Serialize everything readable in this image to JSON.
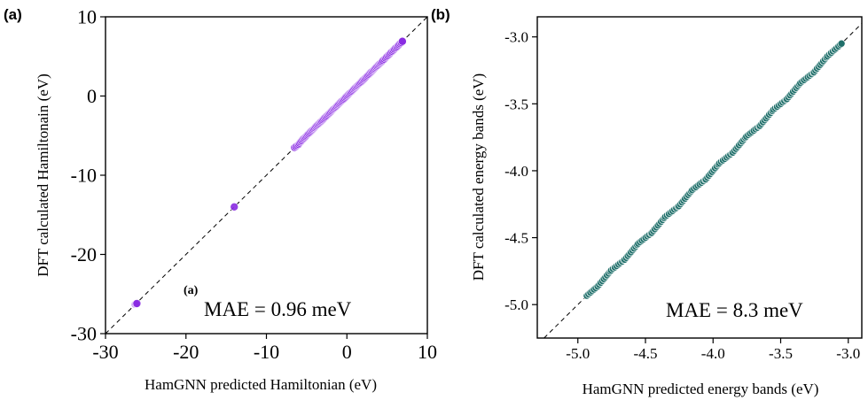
{
  "chart_data": [
    {
      "type": "scatter",
      "panel_label": "(a)",
      "inner_label": "(a)",
      "xlabel": "HamGNN predicted Hamiltonian (eV)",
      "ylabel": "DFT calculated Hamiltonain (eV)",
      "xlim": [
        -30,
        10
      ],
      "ylim": [
        -30,
        10
      ],
      "xticks": [
        -30,
        -20,
        -10,
        0,
        10
      ],
      "yticks": [
        -30,
        -20,
        -10,
        0,
        10
      ],
      "xtick_labels": [
        "-30",
        "-20",
        "-10",
        "0",
        "10"
      ],
      "ytick_labels": [
        "-30",
        "-20",
        "-10",
        "0",
        "10"
      ],
      "annotation": "MAE = 0.96 meV",
      "point_color": "#8a2be2",
      "grid": false,
      "reference_line": "y = x (dashed)",
      "points": [
        [
          -26.3,
          -26.3
        ],
        [
          -26.1,
          -26.2
        ],
        [
          -14.0,
          -14.0
        ],
        [
          -6.5,
          -6.5
        ],
        [
          -6.0,
          -6.1
        ],
        [
          -5.5,
          -5.5
        ],
        [
          -5.0,
          -5.0
        ],
        [
          -4.5,
          -4.5
        ],
        [
          -4.0,
          -4.0
        ],
        [
          -3.5,
          -3.5
        ],
        [
          -3.0,
          -3.0
        ],
        [
          -2.5,
          -2.5
        ],
        [
          -2.0,
          -2.0
        ],
        [
          -1.5,
          -1.5
        ],
        [
          -1.0,
          -1.0
        ],
        [
          -0.5,
          -0.5
        ],
        [
          0.0,
          0.0
        ],
        [
          0.5,
          0.5
        ],
        [
          1.0,
          1.0
        ],
        [
          1.5,
          1.5
        ],
        [
          2.0,
          2.0
        ],
        [
          2.5,
          2.5
        ],
        [
          3.0,
          3.0
        ],
        [
          3.5,
          3.5
        ],
        [
          4.0,
          4.0
        ],
        [
          4.5,
          4.5
        ],
        [
          4.8,
          4.8
        ],
        [
          6.9,
          6.9
        ]
      ]
    },
    {
      "type": "scatter",
      "panel_label": "(b)",
      "xlabel": "HamGNN predicted energy bands (eV)",
      "ylabel": "DFT calculated energy bands (eV)",
      "xlim": [
        -5.3,
        -2.9
      ],
      "ylim": [
        -5.25,
        -2.85
      ],
      "xticks": [
        -5.0,
        -4.5,
        -4.0,
        -3.5,
        -3.0
      ],
      "yticks": [
        -5.0,
        -4.5,
        -4.0,
        -3.5,
        -3.0
      ],
      "xtick_labels": [
        "-5.0",
        "-4.5",
        "-4.0",
        "-3.5",
        "-3.0"
      ],
      "ytick_labels": [
        "-5.0",
        "-4.5",
        "-4.0",
        "-3.5",
        "-3.0"
      ],
      "annotation": "MAE = 8.3 meV",
      "point_color": "#1f6f6a",
      "grid": false,
      "reference_line": "y = x (dashed)",
      "points": [
        [
          -4.93,
          -4.93
        ],
        [
          -4.85,
          -4.86
        ],
        [
          -4.75,
          -4.74
        ],
        [
          -4.65,
          -4.66
        ],
        [
          -4.55,
          -4.54
        ],
        [
          -4.45,
          -4.46
        ],
        [
          -4.35,
          -4.34
        ],
        [
          -4.25,
          -4.26
        ],
        [
          -4.15,
          -4.14
        ],
        [
          -4.05,
          -4.06
        ],
        [
          -3.95,
          -3.94
        ],
        [
          -3.85,
          -3.86
        ],
        [
          -3.75,
          -3.74
        ],
        [
          -3.65,
          -3.66
        ],
        [
          -3.55,
          -3.54
        ],
        [
          -3.45,
          -3.46
        ],
        [
          -3.35,
          -3.34
        ],
        [
          -3.25,
          -3.26
        ],
        [
          -3.15,
          -3.14
        ],
        [
          -3.05,
          -3.05
        ]
      ]
    }
  ]
}
